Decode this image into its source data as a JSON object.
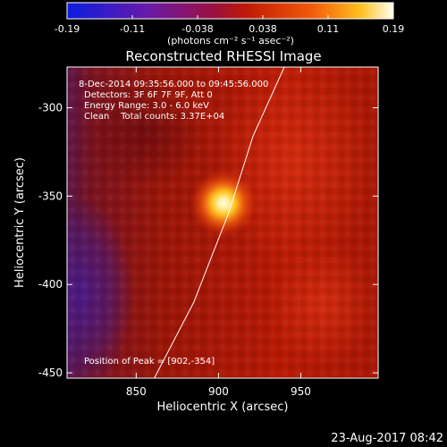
{
  "chart_data": {
    "type": "heatmap",
    "title": "Reconstructed RHESSI Image",
    "xlabel": "Heliocentric X (arcsec)",
    "ylabel": "Heliocentric Y (arcsec)",
    "xlim": [
      808,
      997
    ],
    "ylim": [
      -453,
      -277
    ],
    "x_ticks": [
      850,
      900,
      950
    ],
    "y_ticks": [
      -300,
      -350,
      -400,
      -450
    ],
    "colorbar": {
      "min": -0.19,
      "max": 0.19,
      "tick_labels": [
        "-0.19",
        "-0.11",
        "-0.038",
        "0.038",
        "0.11",
        "0.19"
      ],
      "units_label": "(photons cm⁻² s⁻¹ asec⁻²)"
    },
    "annotations": [
      "8-Dec-2014 09:35:56.000 to 09:45:56.000",
      "Detectors: 3F 6F 7F 9F, Att 0",
      "Energy Range: 3.0 - 6.0 keV",
      "Clean    Total counts: 3.37E+04"
    ],
    "peak_label": "Position of Peak = [902,-354]",
    "peak_position": [
      902,
      -354
    ],
    "limb_curve": [
      [
        861,
        -453
      ],
      [
        885,
        -410
      ],
      [
        906,
        -360
      ],
      [
        921,
        -316
      ],
      [
        940,
        -277
      ]
    ],
    "colors": {
      "background": "#000000",
      "image_mid": "#a51306",
      "limb": "#ffffff"
    }
  },
  "footer": {
    "timestamp": "23-Aug-2017 08:42"
  }
}
